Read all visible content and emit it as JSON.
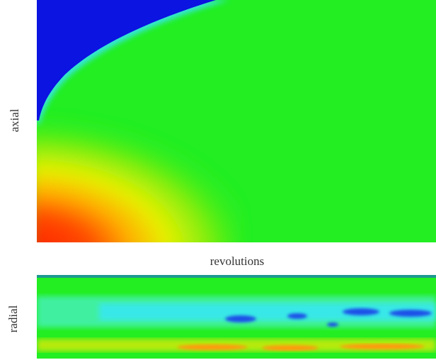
{
  "top_panel": {
    "y_label": "axial"
  },
  "x_label": "revolutions",
  "bottom_panel": {
    "y_label": "radial"
  }
}
